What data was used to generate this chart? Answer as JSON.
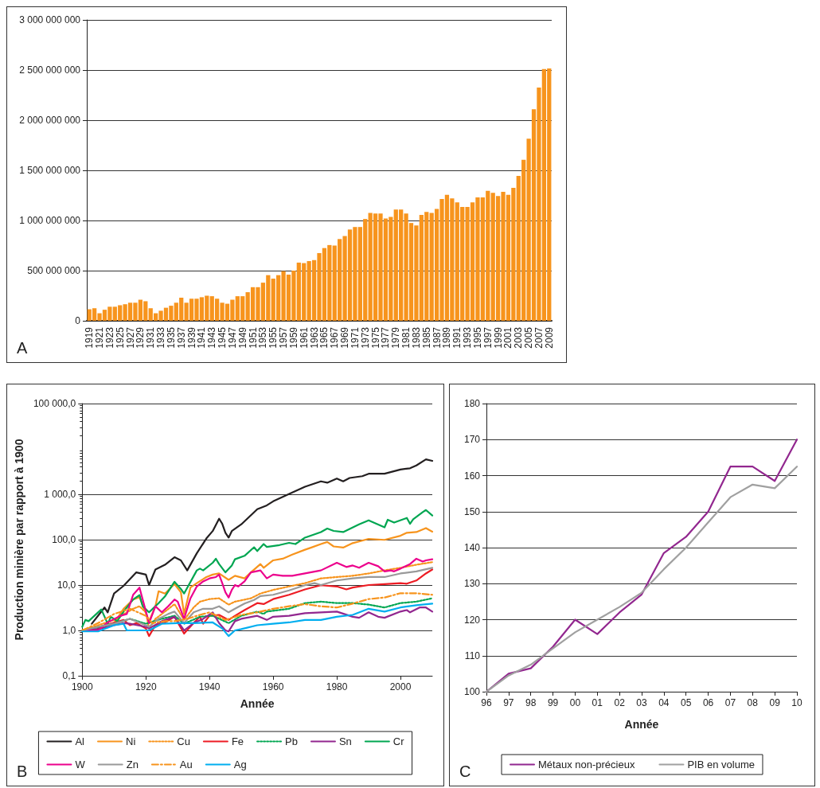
{
  "chart_data": [
    {
      "type": "bar",
      "annotations": [
        "A"
      ],
      "grid": "y",
      "categories": [
        "1919",
        null,
        "1921",
        null,
        "1923",
        null,
        "1925",
        null,
        "1927",
        null,
        "1929",
        null,
        "1931",
        null,
        "1933",
        null,
        "1935",
        null,
        "1937",
        null,
        "1939",
        null,
        "1941",
        null,
        "1943",
        null,
        "1945",
        null,
        "1947",
        null,
        "1949",
        null,
        "1951",
        null,
        "1953",
        null,
        "1955",
        null,
        "1957",
        null,
        "1959",
        null,
        "1961",
        null,
        "1963",
        null,
        "1965",
        null,
        "1967",
        null,
        "1969",
        null,
        "1971",
        null,
        "1973",
        null,
        "1975",
        null,
        "1977",
        null,
        "1979",
        null,
        "1981",
        null,
        "1983",
        null,
        "1985",
        null,
        "1987",
        null,
        "1989",
        null,
        "1991",
        null,
        "1993",
        null,
        "1995",
        null,
        "1997",
        null,
        "1999",
        null,
        "2001",
        null,
        "2003",
        null,
        "2005",
        null,
        "2007",
        null,
        "2009"
      ],
      "series": [
        {
          "color": "#f7941d",
          "values": [
            115000000,
            125000000,
            75000000,
            110000000,
            140000000,
            140000000,
            155000000,
            165000000,
            180000000,
            180000000,
            210000000,
            195000000,
            125000000,
            75000000,
            100000000,
            130000000,
            150000000,
            180000000,
            230000000,
            180000000,
            220000000,
            220000000,
            235000000,
            250000000,
            245000000,
            220000000,
            180000000,
            170000000,
            210000000,
            245000000,
            245000000,
            285000000,
            335000000,
            335000000,
            380000000,
            455000000,
            420000000,
            455000000,
            495000000,
            460000000,
            500000000,
            580000000,
            575000000,
            595000000,
            605000000,
            675000000,
            725000000,
            755000000,
            750000000,
            815000000,
            845000000,
            910000000,
            935000000,
            935000000,
            1015000000,
            1075000000,
            1070000000,
            1070000000,
            1020000000,
            1035000000,
            1110000000,
            1110000000,
            1070000000,
            975000000,
            950000000,
            1055000000,
            1085000000,
            1075000000,
            1115000000,
            1215000000,
            1255000000,
            1220000000,
            1180000000,
            1135000000,
            1135000000,
            1180000000,
            1230000000,
            1230000000,
            1295000000,
            1275000000,
            1245000000,
            1285000000,
            1255000000,
            1325000000,
            1445000000,
            1605000000,
            1815000000,
            2110000000,
            2325000000,
            2510000000,
            2515000000
          ]
        }
      ],
      "ylim": [
        0,
        3000000000
      ],
      "yticks": [
        {
          "value": 0,
          "label": "0"
        },
        {
          "value": 500000000,
          "label": "500 000 000"
        },
        {
          "value": 1000000000,
          "label": "1 000 000 000"
        },
        {
          "value": 1500000000,
          "label": "1 500 000 000"
        },
        {
          "value": 2000000000,
          "label": "2 000 000 000"
        },
        {
          "value": 2500000000,
          "label": "2 500 000 000"
        },
        {
          "value": 3000000000,
          "label": "3 000 000 000"
        }
      ]
    },
    {
      "type": "line",
      "annotations": [
        "B"
      ],
      "xlabel": "Année",
      "ylabel": "Production minière par rapport à 1900",
      "log": true,
      "grid": "y",
      "legend": "bottom",
      "xlim": [
        1900,
        2010
      ],
      "xticks": [
        1900,
        1920,
        1940,
        1960,
        1980,
        2000
      ],
      "ylim": [
        0.1,
        100000
      ],
      "yticks": [
        {
          "value": 0.1,
          "label": "0,1"
        },
        {
          "value": 1,
          "label": "1,0"
        },
        {
          "value": 10,
          "label": "10,0"
        },
        {
          "value": 100,
          "label": "100,0"
        },
        {
          "value": 1000,
          "label": "1 000,0"
        },
        {
          "value": 100000,
          "label": "100 000,0"
        }
      ],
      "series": [
        {
          "name": "Al",
          "color": "#231f20",
          "x": [
            1903,
            1907,
            1908,
            1910,
            1913,
            1917,
            1920,
            1921,
            1923,
            1926,
            1929,
            1931,
            1933,
            1936,
            1939,
            1941,
            1943,
            1944,
            1945,
            1946,
            1947,
            1950,
            1955,
            1958,
            1960,
            1966,
            1970,
            1975,
            1977,
            1980,
            1982,
            1984,
            1988,
            1990,
            1995,
            2000,
            2003,
            2005,
            2008,
            2010
          ],
          "values": [
            1.4,
            3.2,
            2.5,
            6.5,
            9.6,
            19,
            17,
            10,
            22,
            28,
            41,
            35,
            21,
            50,
            106,
            155,
            290,
            224,
            142,
            111,
            155,
            218,
            470,
            570,
            700,
            1090,
            1470,
            1930,
            1800,
            2230,
            1930,
            2290,
            2510,
            2840,
            2840,
            3520,
            3740,
            4320,
            5890,
            5460
          ]
        },
        {
          "name": "Ni",
          "color": "#f7941d",
          "x": [
            1900,
            1905,
            1910,
            1913,
            1916,
            1918,
            1921,
            1923,
            1924,
            1926,
            1929,
            1931,
            1932,
            1934,
            1936,
            1939,
            1941,
            1943,
            1946,
            1948,
            1951,
            1953,
            1956,
            1957,
            1960,
            1963,
            1966,
            1970,
            1972,
            1975,
            1977,
            1979,
            1982,
            1985,
            1990,
            1995,
            2000,
            2002,
            2005,
            2008,
            2010
          ],
          "values": [
            1.0,
            1.2,
            1.45,
            3.0,
            4.8,
            5.4,
            1.6,
            3.4,
            7.3,
            6.5,
            10.5,
            6.9,
            2.3,
            8.8,
            11,
            15,
            17,
            18,
            13,
            16,
            14,
            19,
            29,
            24,
            35,
            38,
            47,
            60,
            67,
            80,
            89,
            71,
            67,
            84,
            104,
            99,
            122,
            142,
            147,
            180,
            150
          ]
        },
        {
          "name": "Cu",
          "color": "#f7941d",
          "line_style": "dotted",
          "x": [
            1900,
            1905,
            1910,
            1914,
            1916,
            1918,
            1920,
            1921,
            1923,
            1926,
            1929,
            1932,
            1935,
            1937,
            1940,
            1943,
            1946,
            1948,
            1953,
            1956,
            1960,
            1965,
            1970,
            1975,
            1980,
            1985,
            1990,
            1995,
            2000,
            2005,
            2010
          ],
          "values": [
            1.0,
            1.3,
            1.7,
            2.5,
            3.0,
            3.4,
            2.5,
            1.1,
            1.8,
            2.6,
            3.8,
            1.7,
            3.2,
            4.3,
            4.9,
            5.1,
            3.7,
            4.3,
            5.1,
            6.5,
            7.8,
            9.3,
            11,
            14,
            15,
            16,
            18,
            21,
            24,
            28,
            32
          ]
        },
        {
          "name": "Fe",
          "color": "#ed1c24",
          "x": [
            1900,
            1904,
            1906,
            1909,
            1913,
            1915,
            1917,
            1920,
            1921,
            1923,
            1926,
            1929,
            1932,
            1935,
            1937,
            1938,
            1940,
            1943,
            1946,
            1948,
            1951,
            1955,
            1957,
            1960,
            1965,
            1970,
            1975,
            1980,
            1983,
            1985,
            1990,
            1995,
            2000,
            2002,
            2005,
            2008,
            2010
          ],
          "values": [
            1.0,
            1.0,
            1.2,
            1.4,
            1.7,
            1.3,
            1.45,
            1.1,
            0.75,
            1.3,
            1.5,
            2.0,
            0.85,
            1.45,
            2.0,
            1.4,
            2.1,
            2.2,
            1.7,
            2.1,
            2.8,
            4.0,
            3.8,
            4.9,
            6.1,
            8,
            9.9,
            9.3,
            8,
            8.8,
            10,
            10.5,
            11,
            10.7,
            12.6,
            18,
            22
          ]
        },
        {
          "name": "Pb",
          "color": "#00a651",
          "line_style": "dotted",
          "x": [
            1900,
            1910,
            1915,
            1920,
            1925,
            1929,
            1932,
            1937,
            1941,
            1946,
            1950,
            1955,
            1957,
            1958,
            1965,
            1970,
            1975,
            1980,
            1985,
            1990,
            1995,
            2000,
            2005,
            2010
          ],
          "values": [
            1.0,
            1.4,
            1.8,
            1.4,
            1.8,
            2.1,
            1.4,
            2.0,
            2.1,
            1.45,
            2.1,
            2.6,
            2.3,
            2.6,
            3.0,
            4.0,
            4.3,
            4.0,
            4.0,
            3.7,
            3.2,
            4.0,
            4.3,
            5.1
          ]
        },
        {
          "name": "Sn",
          "color": "#92278f",
          "x": [
            1900,
            1905,
            1910,
            1913,
            1915,
            1920,
            1921,
            1925,
            1929,
            1932,
            1935,
            1938,
            1941,
            1943,
            1945,
            1946,
            1948,
            1950,
            1955,
            1958,
            1960,
            1965,
            1970,
            1975,
            1980,
            1985,
            1987,
            1990,
            1993,
            1995,
            2000,
            2002,
            2003,
            2006,
            2008,
            2010
          ],
          "values": [
            1.0,
            1.07,
            1.3,
            1.45,
            1.4,
            1.2,
            1.1,
            1.6,
            2.0,
            1.0,
            1.45,
            1.8,
            2.5,
            1.45,
            1.0,
            0.95,
            1.6,
            1.8,
            2.1,
            1.7,
            2.0,
            2.1,
            2.4,
            2.5,
            2.6,
            2.0,
            1.9,
            2.5,
            2.0,
            1.9,
            2.6,
            2.8,
            2.5,
            3.2,
            3.2,
            2.6
          ]
        },
        {
          "name": "Cr",
          "color": "#00a651",
          "x": [
            1900,
            1901,
            1902,
            1906,
            1908,
            1909,
            1911,
            1913,
            1916,
            1918,
            1919,
            1921,
            1924,
            1926,
            1929,
            1931,
            1932,
            1936,
            1937,
            1938,
            1941,
            1942,
            1943,
            1945,
            1947,
            1948,
            1951,
            1954,
            1955,
            1957,
            1958,
            1962,
            1965,
            1967,
            1970,
            1975,
            1977,
            1979,
            1982,
            1987,
            1990,
            1995,
            1996,
            1998,
            2002,
            2003,
            2004,
            2007,
            2008,
            2010
          ],
          "values": [
            1.2,
            1.7,
            1.6,
            2.9,
            1.4,
            2.0,
            1.6,
            2.6,
            4.8,
            6.0,
            3.4,
            2.5,
            4.0,
            5.6,
            11.8,
            8.2,
            6.5,
            21,
            23,
            21,
            31,
            38,
            29,
            19,
            27,
            37,
            44,
            68,
            56,
            80,
            69,
            76,
            85,
            80,
            111,
            147,
            176,
            156,
            147,
            218,
            267,
            187,
            275,
            238,
            301,
            224,
            282,
            405,
            450,
            340
          ]
        },
        {
          "name": "W",
          "color": "#ec008c",
          "x": [
            1900,
            1905,
            1908,
            1912,
            1914,
            1916,
            1918,
            1919,
            1921,
            1923,
            1925,
            1927,
            1929,
            1930,
            1932,
            1934,
            1936,
            1938,
            1940,
            1942,
            1943,
            1944,
            1945,
            1946,
            1947,
            1948,
            1949,
            1951,
            1953,
            1956,
            1958,
            1960,
            1963,
            1966,
            1970,
            1975,
            1980,
            1983,
            1985,
            1987,
            1990,
            1993,
            1995,
            1997,
            1998,
            2000,
            2003,
            2005,
            2007,
            2008,
            2010
          ],
          "values": [
            1.0,
            1.0,
            1.5,
            2.1,
            2.3,
            6.1,
            8.8,
            4.8,
            1.45,
            3.4,
            2.5,
            3.4,
            4.8,
            4.3,
            1.8,
            5.1,
            9.3,
            12,
            14,
            15,
            17,
            11,
            6.9,
            5.3,
            7.8,
            10,
            9.3,
            12,
            19,
            21,
            14,
            17,
            16,
            16,
            18,
            21,
            31,
            25,
            27,
            24,
            31,
            26,
            20,
            21,
            20,
            23,
            29,
            38,
            33,
            35,
            37
          ]
        },
        {
          "name": "Zn",
          "color": "#999999",
          "x": [
            1900,
            1905,
            1910,
            1915,
            1920,
            1921,
            1924,
            1927,
            1929,
            1932,
            1935,
            1938,
            1941,
            1943,
            1946,
            1948,
            1951,
            1954,
            1956,
            1960,
            1965,
            1970,
            1973,
            1975,
            1980,
            1985,
            1990,
            1995,
            2000,
            2005,
            2010
          ],
          "values": [
            1.0,
            1.2,
            1.4,
            1.8,
            1.3,
            1.2,
            1.8,
            2.3,
            2.6,
            1.45,
            2.5,
            3.0,
            3.0,
            3.4,
            2.5,
            3.0,
            3.9,
            4.7,
            5.7,
            6.1,
            7.6,
            9.9,
            11,
            10,
            12.6,
            14,
            15,
            15,
            18,
            20,
            24
          ]
        },
        {
          "name": "Au",
          "color": "#f7941d",
          "line_style": "dashed",
          "x": [
            1900,
            1905,
            1910,
            1915,
            1920,
            1922,
            1926,
            1929,
            1933,
            1937,
            1940,
            1945,
            1950,
            1955,
            1960,
            1965,
            1970,
            1975,
            1980,
            1985,
            1990,
            1995,
            2000,
            2005,
            2010
          ],
          "values": [
            1.0,
            1.45,
            2.3,
            3.0,
            2.1,
            1.45,
            1.6,
            1.6,
            1.8,
            2.2,
            2.5,
            1.7,
            2.2,
            2.5,
            3.0,
            3.4,
            3.8,
            3.4,
            3.2,
            3.9,
            4.9,
            5.3,
            6.6,
            6.6,
            6.1
          ]
        },
        {
          "name": "Ag",
          "color": "#00aeef",
          "x": [
            1900,
            1905,
            1910,
            1913,
            1914,
            1920,
            1921,
            1925,
            1930,
            1935,
            1941,
            1944,
            1946,
            1948,
            1950,
            1955,
            1960,
            1965,
            1970,
            1975,
            1980,
            1985,
            1990,
            1995,
            2000,
            2005,
            2010
          ],
          "values": [
            0.95,
            0.95,
            1.3,
            1.4,
            1.0,
            1.0,
            1.0,
            1.4,
            1.45,
            1.45,
            1.5,
            1.1,
            0.75,
            1.0,
            1.07,
            1.3,
            1.4,
            1.5,
            1.7,
            1.7,
            2.0,
            2.2,
            3.0,
            2.6,
            3.2,
            3.6,
            3.9
          ]
        }
      ]
    },
    {
      "type": "line",
      "annotations": [
        "C"
      ],
      "xlabel": "Année",
      "grid": "y",
      "legend": "bottom",
      "categories": [
        "96",
        "97",
        "98",
        "99",
        "00",
        "01",
        "02",
        "03",
        "04",
        "05",
        "06",
        "07",
        "08",
        "09",
        "10"
      ],
      "ylim": [
        100,
        180
      ],
      "yticks": [
        100,
        110,
        120,
        130,
        140,
        150,
        160,
        170,
        180
      ],
      "series": [
        {
          "name": "Métaux non-précieux",
          "color": "#92278f",
          "values": [
            100,
            105,
            106.5,
            112.5,
            120,
            116,
            122,
            127,
            138.5,
            143,
            150,
            162.5,
            162.5,
            158.5,
            170
          ]
        },
        {
          "name": "PIB en volume",
          "color": "#a0a0a0",
          "values": [
            100,
            104.5,
            107.5,
            112,
            116.5,
            120,
            123.5,
            127.5,
            134,
            140,
            147,
            154,
            157.5,
            156.5,
            162.5
          ]
        }
      ]
    }
  ]
}
